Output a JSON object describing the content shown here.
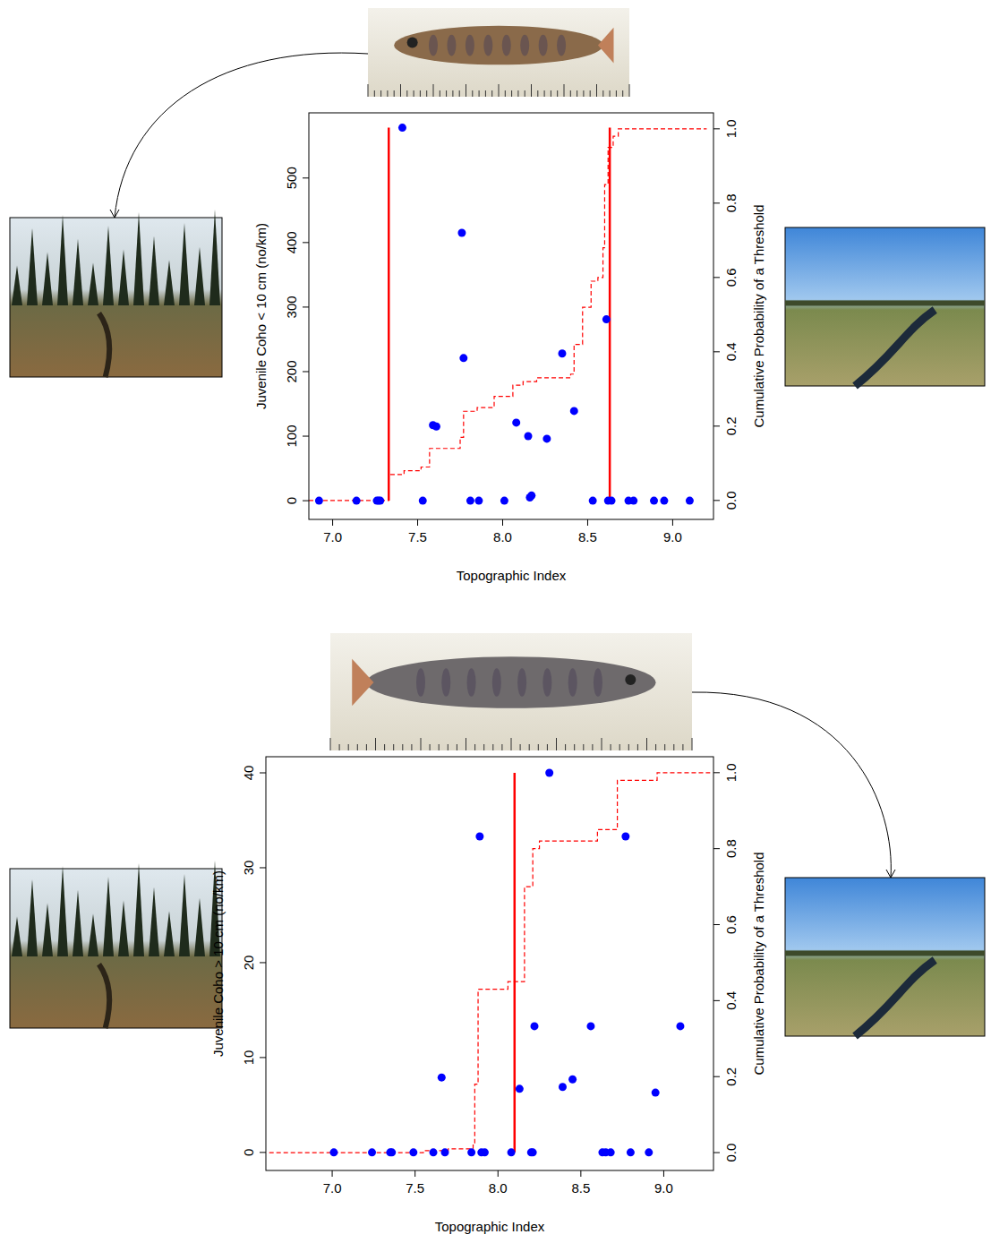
{
  "chart_data": [
    {
      "type": "scatter",
      "x_label": "Topographic Index",
      "y_label": "Juvenile Coho < 10 cm (no/km)",
      "y2_label": "Cumulative Probability of a Threshold",
      "color": "#0000ff",
      "marker": "circle",
      "x": [
        6.92,
        7.14,
        7.26,
        7.27,
        7.28,
        7.41,
        7.53,
        7.59,
        7.61,
        7.76,
        7.77,
        7.81,
        7.86,
        8.01,
        8.08,
        8.15,
        8.16,
        8.17,
        8.26,
        8.35,
        8.42,
        8.53,
        8.61,
        8.62,
        8.64,
        8.74,
        8.77,
        8.89,
        8.95,
        9.1
      ],
      "values": [
        0,
        0,
        0,
        0,
        0,
        578,
        0,
        117,
        115,
        415,
        221,
        0,
        0,
        0,
        121,
        100,
        5,
        8,
        96,
        228,
        139,
        0,
        281,
        0,
        0,
        0,
        0,
        0,
        0,
        0
      ],
      "xlim": [
        6.86,
        9.24
      ],
      "ylim": [
        -29,
        601
      ],
      "y2lim": [
        -0.051,
        1.043
      ],
      "xticks": [
        {
          "value": 7,
          "label": "7.0"
        },
        7.5,
        {
          "value": 8,
          "label": "8.0"
        },
        8.5,
        {
          "value": 9,
          "label": "9.0"
        }
      ],
      "yticks": [
        0,
        100,
        200,
        300,
        400,
        500
      ],
      "y2ticks": [
        {
          "value": 0,
          "label": "0.0"
        },
        0.2,
        0.4,
        0.6,
        0.8,
        {
          "value": 1,
          "label": "1.0"
        }
      ],
      "thresholds": {
        "values": [
          7.33,
          8.63
        ],
        "color": "#ff0000"
      },
      "cumulative": {
        "type": "step",
        "axis": "y2",
        "line_style": "dashed",
        "color": "#ff0000",
        "x": [
          6.86,
          7.33,
          7.42,
          7.52,
          7.57,
          7.75,
          7.77,
          7.85,
          7.95,
          8.06,
          8.12,
          8.2,
          8.4,
          8.42,
          8.47,
          8.52,
          8.56,
          8.59,
          8.6,
          8.62,
          8.65,
          8.68,
          9.2
        ],
        "values": [
          0,
          0.07,
          0.08,
          0.09,
          0.14,
          0.17,
          0.24,
          0.25,
          0.28,
          0.31,
          0.32,
          0.33,
          0.34,
          0.42,
          0.52,
          0.59,
          0.6,
          0.68,
          0.85,
          0.95,
          0.98,
          1.0,
          1.0
        ]
      }
    },
    {
      "type": "scatter",
      "x_label": "Topographic Index",
      "y_label": "Juvenile Coho > 10 cm (no/km)",
      "y2_label": "Cumulative Probability of a Threshold",
      "color": "#0000ff",
      "marker": "circle",
      "x": [
        7.01,
        7.24,
        7.35,
        7.36,
        7.49,
        7.61,
        7.68,
        7.66,
        7.84,
        7.89,
        7.9,
        7.92,
        8.08,
        8.13,
        8.2,
        8.21,
        8.22,
        8.31,
        8.39,
        8.45,
        8.56,
        8.63,
        8.65,
        8.68,
        8.77,
        8.8,
        8.91,
        8.95,
        9.1
      ],
      "values": [
        0,
        0,
        0,
        0,
        0,
        0,
        0,
        7.9,
        0,
        33.3,
        0,
        0,
        0,
        6.7,
        0,
        0,
        13.3,
        40,
        6.9,
        7.7,
        13.3,
        0,
        0,
        0,
        33.3,
        0,
        0,
        6.3,
        13.3
      ],
      "xlim": [
        6.6,
        9.3
      ],
      "ylim": [
        -1.9,
        41.7
      ],
      "y2lim": [
        -0.047,
        1.042
      ],
      "xticks": [
        {
          "value": 7,
          "label": "7.0"
        },
        7.5,
        {
          "value": 8,
          "label": "8.0"
        },
        8.5,
        {
          "value": 9,
          "label": "9.0"
        }
      ],
      "yticks": [
        0,
        10,
        20,
        30,
        40
      ],
      "y2ticks": [
        {
          "value": 0,
          "label": "0.0"
        },
        0.2,
        0.4,
        0.6,
        0.8,
        {
          "value": 1,
          "label": "1.0"
        }
      ],
      "thresholds": {
        "values": [
          8.1
        ],
        "color": "#ff0000"
      },
      "cumulative": {
        "type": "step",
        "axis": "y2",
        "line_style": "dashed",
        "color": "#ff0000",
        "x": [
          6.62,
          7.55,
          7.7,
          7.85,
          7.86,
          7.88,
          8.06,
          8.16,
          8.21,
          8.25,
          8.6,
          8.72,
          8.96,
          9.28
        ],
        "values": [
          0,
          0.005,
          0.01,
          0.02,
          0.18,
          0.43,
          0.45,
          0.7,
          0.8,
          0.82,
          0.85,
          0.98,
          1.0,
          1.0
        ]
      }
    }
  ]
}
